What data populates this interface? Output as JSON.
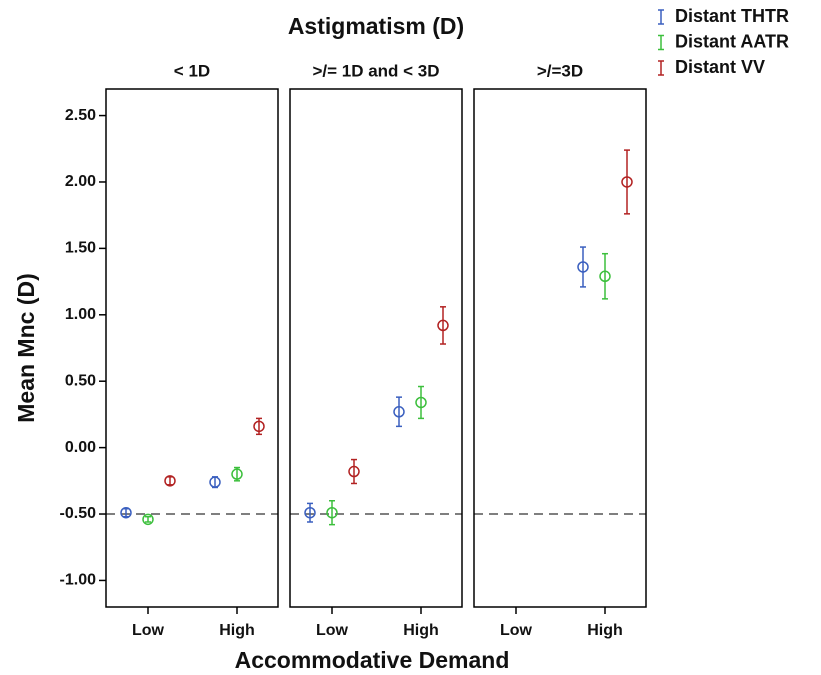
{
  "chart_data": {
    "type": "errorbar",
    "title": "Astigmatism (D)",
    "xlabel": "Accommodative Demand",
    "ylabel": "Mean Mnc (D)",
    "ylim": [
      -1.2,
      2.7
    ],
    "yticks": [
      {
        "value": -1,
        "label": "-1.00"
      },
      {
        "value": -0.5,
        "label": "-0.50"
      },
      {
        "value": 0,
        "label": "0.00"
      },
      {
        "value": 0.5,
        "label": "0.50"
      },
      {
        "value": 1,
        "label": "1.00"
      },
      {
        "value": 1.5,
        "label": "1.50"
      },
      {
        "value": 2,
        "label": "2.00"
      },
      {
        "value": 2.5,
        "label": "2.50"
      }
    ],
    "reference_line": -0.5,
    "categories": [
      "Low",
      "High"
    ],
    "series": [
      {
        "name": "Distant THTR",
        "color": "#3a5fbf"
      },
      {
        "name": "Distant AATR",
        "color": "#3cbf3c"
      },
      {
        "name": "Distant VV",
        "color": "#b22222"
      }
    ],
    "panels": [
      {
        "title": "< 1D",
        "values": [
          [
            -0.49,
            -0.26
          ],
          [
            -0.54,
            -0.2
          ],
          [
            -0.25,
            0.16
          ]
        ],
        "errors": [
          [
            0.03,
            0.04
          ],
          [
            0.02,
            0.05
          ],
          [
            0.03,
            0.06
          ]
        ]
      },
      {
        "title": ">/= 1D and < 3D",
        "values": [
          [
            -0.49,
            0.27
          ],
          [
            -0.49,
            0.34
          ],
          [
            -0.18,
            0.92
          ]
        ],
        "errors": [
          [
            0.07,
            0.11
          ],
          [
            0.09,
            0.12
          ],
          [
            0.09,
            0.14
          ]
        ]
      },
      {
        "title": ">/=3D",
        "values": [
          [
            null,
            1.36
          ],
          [
            null,
            1.29
          ],
          [
            null,
            2.0
          ]
        ],
        "errors": [
          [
            null,
            0.15
          ],
          [
            null,
            0.17
          ],
          [
            null,
            0.24
          ]
        ]
      }
    ]
  }
}
